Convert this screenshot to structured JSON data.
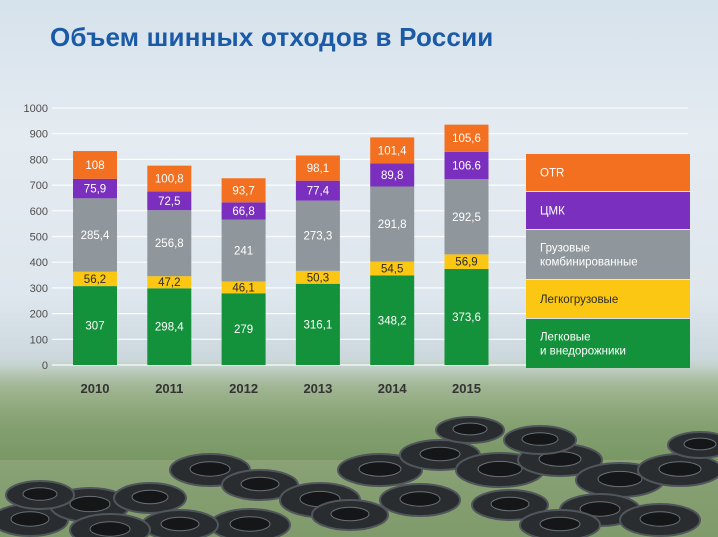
{
  "chart_data": {
    "type": "bar",
    "stacked": true,
    "title": "Объем шинных отходов в России",
    "categories": [
      "2010",
      "2011",
      "2012",
      "2013",
      "2014",
      "2015"
    ],
    "ylim": [
      0,
      1000
    ],
    "yticks": [
      0,
      100,
      200,
      300,
      400,
      500,
      600,
      700,
      800,
      900,
      1000
    ],
    "grid": true,
    "legend_position": "right",
    "series": [
      {
        "name": "Легковые и внедорожники",
        "color": "#14913b",
        "values": [
          307,
          298.4,
          279,
          316.1,
          348.2,
          373.6
        ],
        "labels": [
          "307",
          "298,4",
          "279",
          "316,1",
          "348,2",
          "373,6"
        ]
      },
      {
        "name": "Легкогрузовые",
        "color": "#fcc712",
        "values": [
          56.2,
          47.2,
          46.1,
          50.3,
          54.5,
          56.9
        ],
        "labels": [
          "56,2",
          "47,2",
          "46,1",
          "50,3",
          "54,5",
          "56,9"
        ]
      },
      {
        "name": "Грузовые комбинированные",
        "color": "#8f979c",
        "values": [
          285.4,
          256.8,
          241,
          273.3,
          291.8,
          292.5
        ],
        "labels": [
          "285,4",
          "256,8",
          "241",
          "273,3",
          "291,8",
          "292,5"
        ]
      },
      {
        "name": "ЦМК",
        "color": "#7b2fbf",
        "values": [
          75.9,
          72.5,
          66.8,
          77.4,
          89.8,
          106.6
        ],
        "labels": [
          "75,9",
          "72,5",
          "66,8",
          "77,4",
          "89,8",
          "106.6"
        ]
      },
      {
        "name": "OTR",
        "color": "#f37021",
        "values": [
          108,
          100.8,
          93.7,
          98.1,
          101.4,
          105.6
        ],
        "labels": [
          "108",
          "100,8",
          "93,7",
          "98,1",
          "101,4",
          "105,6"
        ]
      }
    ],
    "legend": [
      {
        "lines": [
          "OTR"
        ],
        "color": "#f37021"
      },
      {
        "lines": [
          "ЦМК"
        ],
        "color": "#7b2fbf"
      },
      {
        "lines": [
          "Грузовые",
          "комбинированные"
        ],
        "color": "#8f979c"
      },
      {
        "lines": [
          "Легкогрузовые"
        ],
        "color": "#fcc712"
      },
      {
        "lines": [
          "Легковые",
          "и внедорожники"
        ],
        "color": "#14913b"
      }
    ]
  }
}
